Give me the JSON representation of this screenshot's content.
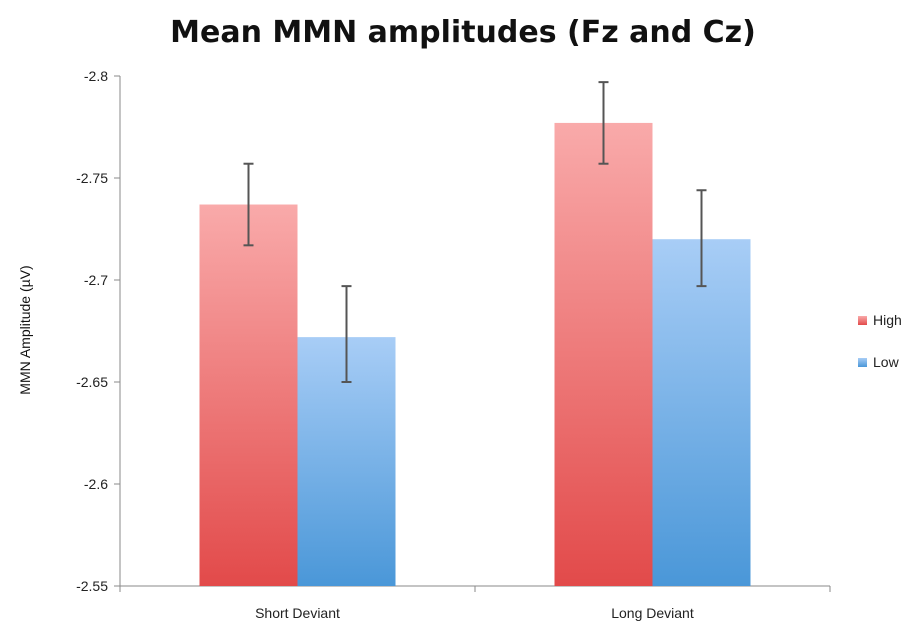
{
  "chart_data": {
    "type": "bar",
    "title": "Mean MMN amplitudes (Fz and Cz)",
    "xlabel": "",
    "ylabel": "MMN Amplitude (µV)",
    "categories": [
      "Short Deviant",
      "Long Deviant"
    ],
    "series": [
      {
        "name": "High",
        "values": [
          -2.737,
          -2.777
        ],
        "error_low": [
          -2.717,
          -2.757
        ],
        "error_high": [
          -2.757,
          -2.797
        ],
        "color_top": "#f9aaaa",
        "color_bottom": "#e24a4a"
      },
      {
        "name": "Low",
        "values": [
          -2.672,
          -2.72
        ],
        "error_low": [
          -2.65,
          -2.697
        ],
        "error_high": [
          -2.697,
          -2.744
        ],
        "color_top": "#a8cdf6",
        "color_bottom": "#4a97d8"
      }
    ],
    "ylim": [
      -2.55,
      -2.8
    ],
    "y_axis_inverted": true,
    "y_ticks": [
      "-2.8",
      "-2.75",
      "-2.7",
      "-2.65",
      "-2.6",
      "-2.55"
    ],
    "grid": false,
    "legend_position": "right",
    "error_bars": true
  }
}
